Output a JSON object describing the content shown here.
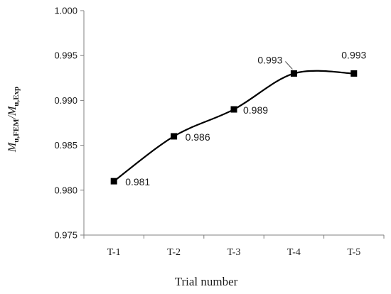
{
  "chart_data": {
    "type": "line",
    "categories": [
      "T-1",
      "T-2",
      "T-3",
      "T-4",
      "T-5"
    ],
    "values": [
      0.981,
      0.986,
      0.989,
      0.993,
      0.993
    ],
    "data_labels": [
      "0.981",
      "0.986",
      "0.989",
      "0.993",
      "0.993"
    ],
    "ylim": [
      0.975,
      1.0
    ],
    "yticks": [
      "0.975",
      "0.980",
      "0.985",
      "0.990",
      "0.995",
      "1.000"
    ],
    "xlabel": "Trial number",
    "ylabel": {
      "m1": "M",
      "sub1": "u,FEM",
      "slash": "/",
      "m2": "M",
      "sub2": "u,Exp"
    },
    "grid": false,
    "smooth": true,
    "marker": "square",
    "series_color": "#000000"
  }
}
